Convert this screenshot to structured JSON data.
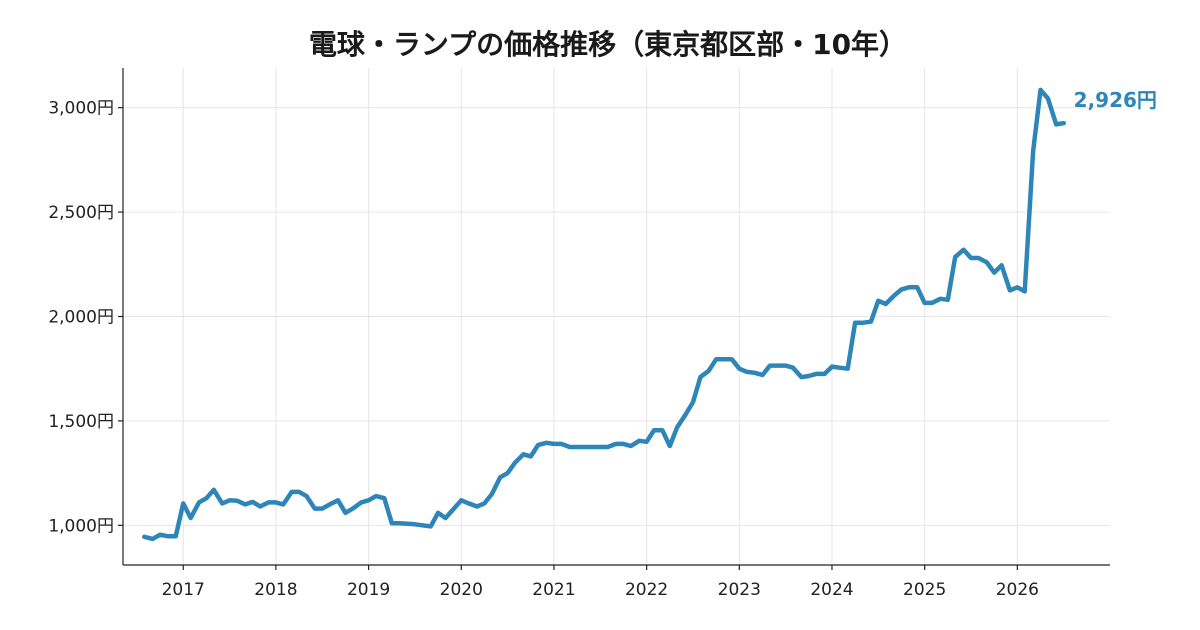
{
  "chart_data": {
    "type": "line",
    "title": "電球・ランプの価格推移（東京都区部・10年）",
    "xlabel": "",
    "ylabel": "",
    "x_range": [
      2016.35,
      2027.0
    ],
    "ylim": [
      810,
      3190
    ],
    "x_ticks": [
      {
        "value": 2017,
        "label": "2017"
      },
      {
        "value": 2018,
        "label": "2018"
      },
      {
        "value": 2019,
        "label": "2019"
      },
      {
        "value": 2020,
        "label": "2020"
      },
      {
        "value": 2021,
        "label": "2021"
      },
      {
        "value": 2022,
        "label": "2022"
      },
      {
        "value": 2023,
        "label": "2023"
      },
      {
        "value": 2024,
        "label": "2024"
      },
      {
        "value": 2025,
        "label": "2025"
      },
      {
        "value": 2026,
        "label": "2026"
      }
    ],
    "y_ticks": [
      {
        "value": 1000,
        "label": "1,000円"
      },
      {
        "value": 1500,
        "label": "1,500円"
      },
      {
        "value": 2000,
        "label": "2,000円"
      },
      {
        "value": 2500,
        "label": "2,500円"
      },
      {
        "value": 3000,
        "label": "3,000円"
      }
    ],
    "grid": true,
    "series": [
      {
        "name": "",
        "color": "#2e86b8",
        "end_label": "2,926円",
        "x": [
          2016.58,
          2016.67,
          2016.75,
          2016.83,
          2016.92,
          2017.0,
          2017.08,
          2017.17,
          2017.25,
          2017.33,
          2017.42,
          2017.5,
          2017.58,
          2017.67,
          2017.75,
          2017.83,
          2017.92,
          2018.0,
          2018.08,
          2018.17,
          2018.25,
          2018.33,
          2018.42,
          2018.5,
          2018.58,
          2018.67,
          2018.75,
          2018.83,
          2018.92,
          2019.0,
          2019.08,
          2019.17,
          2019.25,
          2019.33,
          2019.42,
          2019.5,
          2019.58,
          2019.67,
          2019.75,
          2019.83,
          2019.92,
          2020.0,
          2020.08,
          2020.17,
          2020.25,
          2020.33,
          2020.42,
          2020.5,
          2020.58,
          2020.67,
          2020.75,
          2020.83,
          2020.92,
          2021.0,
          2021.08,
          2021.17,
          2021.25,
          2021.33,
          2021.42,
          2021.5,
          2021.58,
          2021.67,
          2021.75,
          2021.83,
          2021.92,
          2022.0,
          2022.08,
          2022.17,
          2022.25,
          2022.33,
          2022.42,
          2022.5,
          2022.58,
          2022.67,
          2022.75,
          2022.83,
          2022.92,
          2023.0,
          2023.08,
          2023.17,
          2023.25,
          2023.33,
          2023.42,
          2023.5,
          2023.58,
          2023.67,
          2023.75,
          2023.83,
          2023.92,
          2024.0,
          2024.08,
          2024.17,
          2024.25,
          2024.33,
          2024.42,
          2024.5,
          2024.58,
          2024.67,
          2024.75,
          2024.83,
          2024.92,
          2025.0,
          2025.08,
          2025.17,
          2025.25,
          2025.33,
          2025.42,
          2025.5,
          2025.58,
          2025.67,
          2025.75,
          2025.83,
          2025.92,
          2026.0,
          2026.08,
          2026.17,
          2026.25,
          2026.33,
          2026.42,
          2026.5
        ],
        "y": [
          945,
          935,
          955,
          948,
          948,
          1105,
          1035,
          1110,
          1130,
          1170,
          1105,
          1120,
          1118,
          1100,
          1112,
          1090,
          1110,
          1110,
          1100,
          1160,
          1160,
          1140,
          1080,
          1080,
          1100,
          1120,
          1060,
          1080,
          1110,
          1120,
          1140,
          1130,
          1010,
          1010,
          1008,
          1005,
          1000,
          995,
          1060,
          1035,
          1080,
          1120,
          1105,
          1090,
          1105,
          1150,
          1230,
          1250,
          1300,
          1340,
          1330,
          1385,
          1395,
          1390,
          1390,
          1375,
          1375,
          1375,
          1375,
          1375,
          1375,
          1390,
          1390,
          1380,
          1405,
          1400,
          1455,
          1455,
          1380,
          1470,
          1530,
          1590,
          1710,
          1740,
          1795,
          1795,
          1795,
          1750,
          1735,
          1730,
          1720,
          1765,
          1765,
          1765,
          1755,
          1710,
          1715,
          1725,
          1725,
          1760,
          1755,
          1750,
          1970,
          1970,
          1975,
          2075,
          2060,
          2100,
          2130,
          2140,
          2140,
          2065,
          2065,
          2085,
          2080,
          2285,
          2320,
          2280,
          2280,
          2260,
          2210,
          2245,
          2125,
          2140,
          2120,
          2790,
          3085,
          3045,
          2920,
          2926
        ]
      }
    ]
  }
}
